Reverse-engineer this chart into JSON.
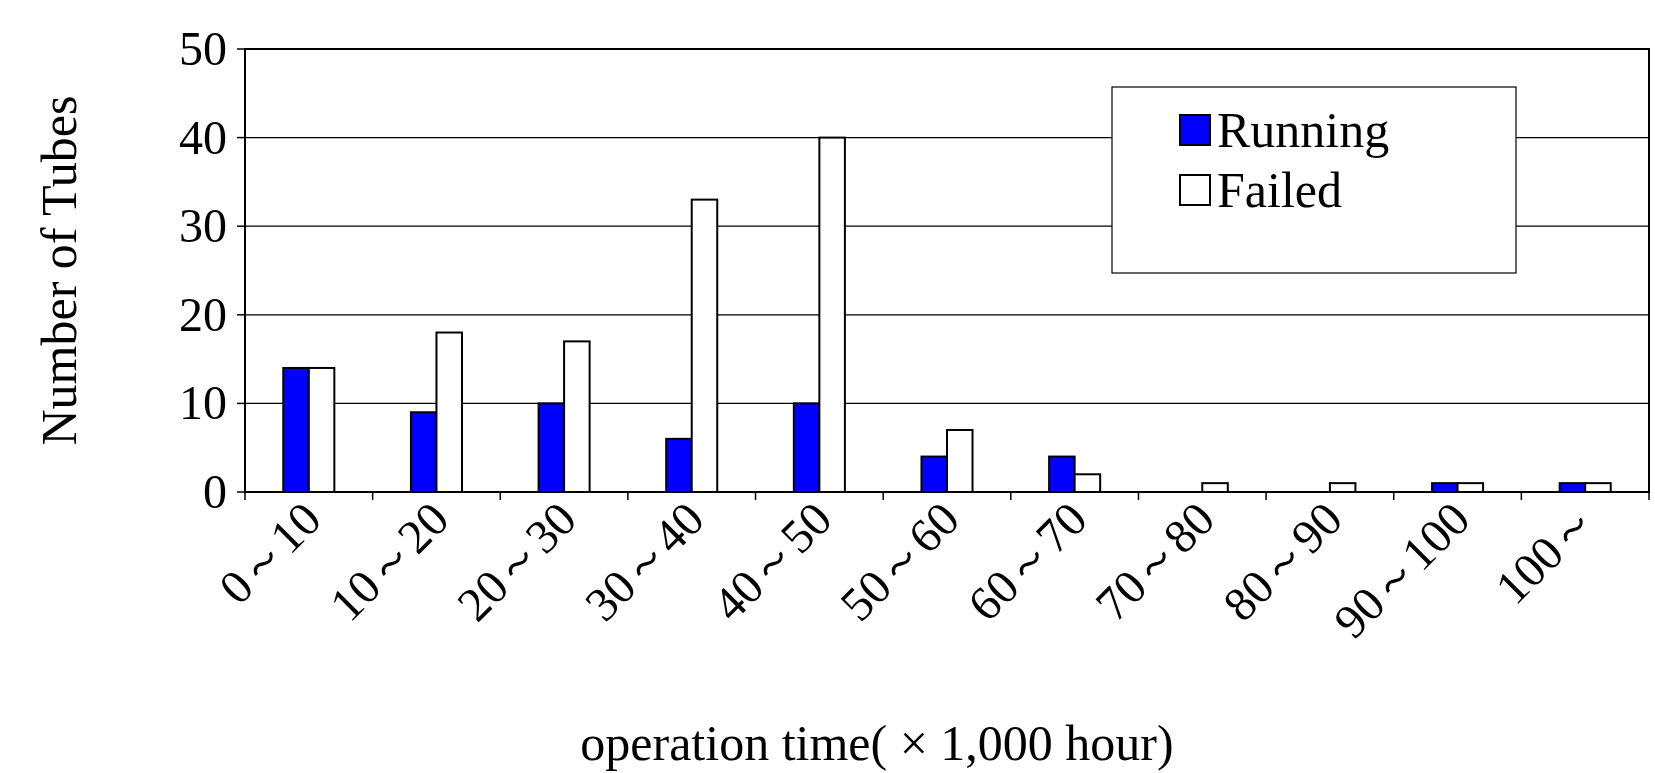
{
  "chart_data": {
    "type": "bar",
    "xlabel": "operation time( × 1,000 hour)",
    "ylabel": "Number of Tubes",
    "categories": [
      "0～10",
      "10～20",
      "20～30",
      "30～40",
      "40～50",
      "50～60",
      "60～70",
      "70～80",
      "80～90",
      "90～100",
      "100～"
    ],
    "series": [
      {
        "name": "Running",
        "color": "#0000ff",
        "values": [
          14,
          9,
          10,
          6,
          10,
          4,
          4,
          0,
          0,
          1,
          1
        ]
      },
      {
        "name": "Failed",
        "color": "#ffffff",
        "values": [
          14,
          18,
          17,
          33,
          40,
          7,
          2,
          1,
          1,
          1,
          1
        ]
      }
    ],
    "ylim": [
      0,
      50
    ],
    "yticks": [
      0,
      10,
      20,
      30,
      40,
      50
    ],
    "grid": "y",
    "legend": "top right"
  }
}
